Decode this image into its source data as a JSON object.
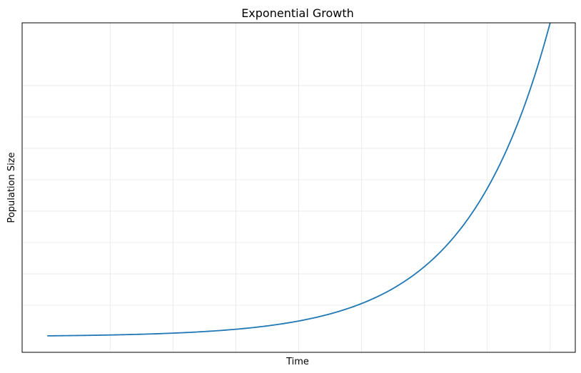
{
  "colors": {
    "background": "#ffffff",
    "axes": "#000000",
    "grid": "#ececec",
    "series": "#1f77b4"
  },
  "chart_data": {
    "type": "line",
    "title": "Exponential Growth",
    "xlabel": "Time",
    "ylabel": "Population Size",
    "xlim": [
      -0.4,
      8.4
    ],
    "ylim": [
      -0.05,
      1.0
    ],
    "x_ticks_shown": false,
    "y_ticks_shown": false,
    "grid": true,
    "legend": "none",
    "series": [
      {
        "values_formula": "y = exp(0.75 * x) / exp(0.75 * 8)",
        "x": [
          0,
          0.5,
          1,
          1.5,
          2,
          2.5,
          3,
          3.5,
          4,
          4.5,
          5,
          5.5,
          6,
          6.5,
          7,
          7.5,
          8
        ],
        "y": [
          0.0025,
          0.0036,
          0.0053,
          0.0077,
          0.0111,
          0.0161,
          0.0235,
          0.034,
          0.0498,
          0.0724,
          0.1054,
          0.1534,
          0.2231,
          0.3247,
          0.4724,
          0.6873,
          1.0
        ]
      }
    ]
  }
}
